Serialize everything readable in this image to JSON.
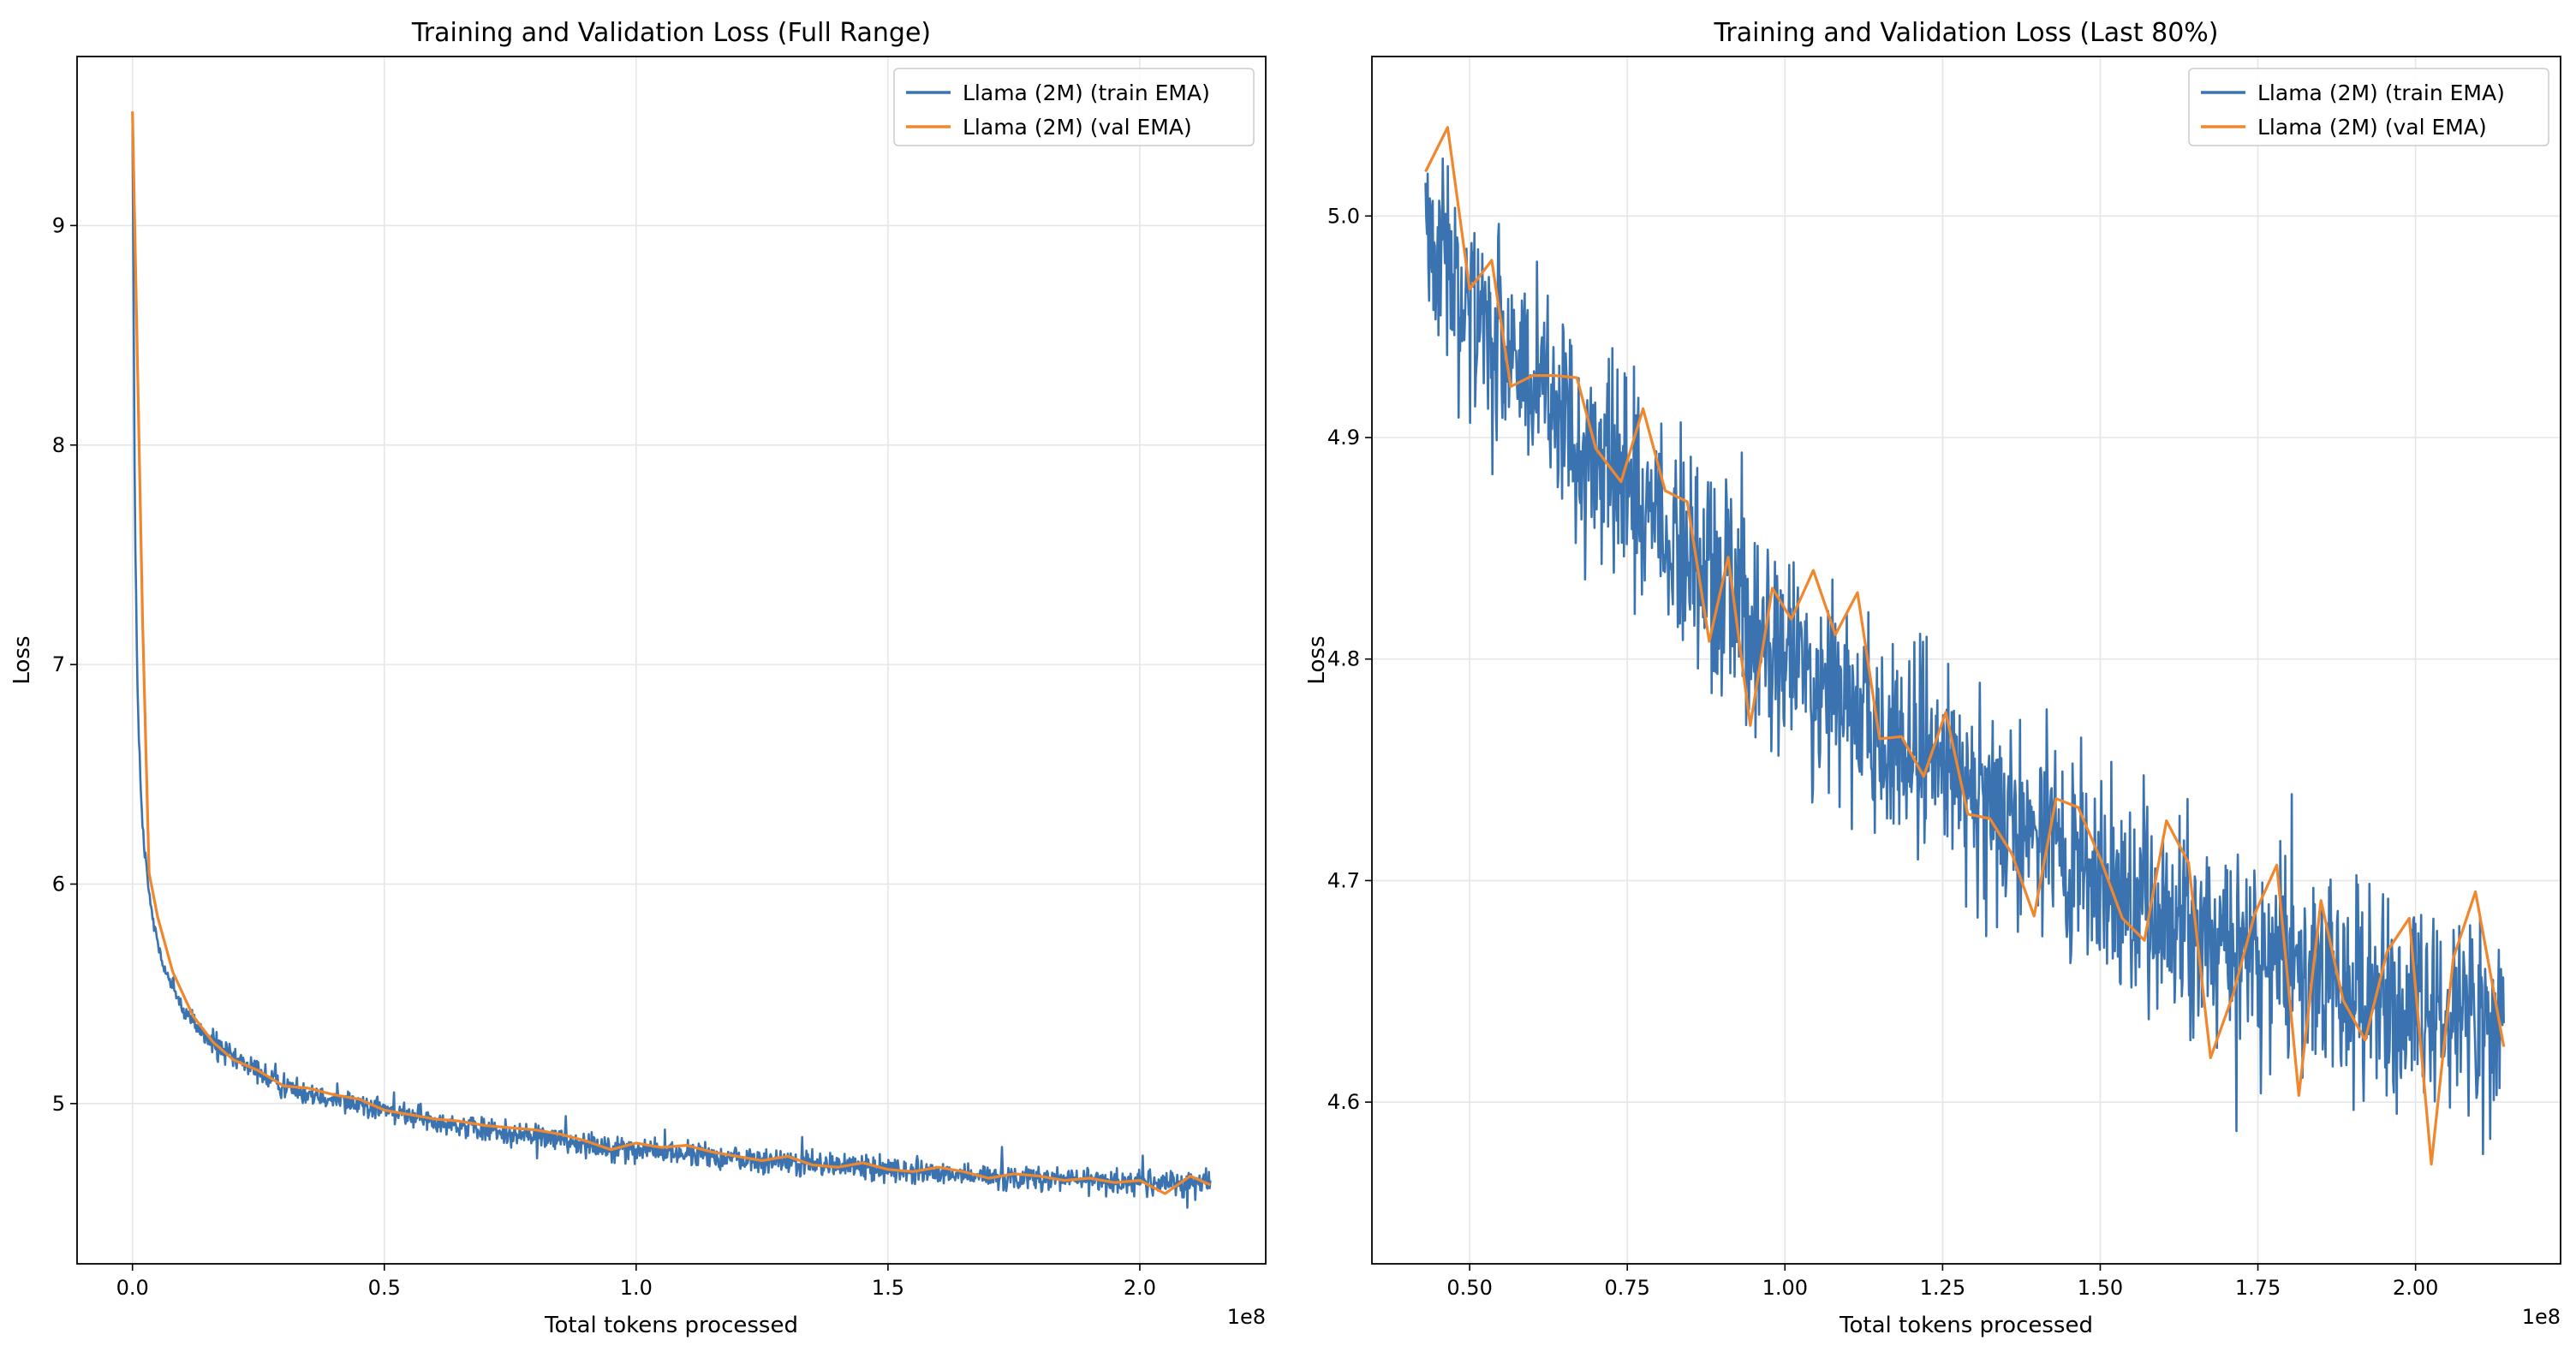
{
  "chart_data": [
    {
      "type": "line",
      "title": "Training and Validation Loss (Full Range)",
      "xlabel": "Total tokens processed",
      "ylabel": "Loss",
      "x_offset_label": "1e8",
      "xlim": [
        -0.11,
        2.25
      ],
      "ylim": [
        4.27,
        9.77
      ],
      "xticks": [
        0.0,
        0.5,
        1.0,
        1.5,
        2.0
      ],
      "xtick_labels": [
        "0.0",
        "0.5",
        "1.0",
        "1.5",
        "2.0"
      ],
      "yticks": [
        5,
        6,
        7,
        8,
        9
      ],
      "ytick_labels": [
        "5",
        "6",
        "7",
        "8",
        "9"
      ],
      "grid": true,
      "legend_position": "upper-right",
      "series": [
        {
          "name": "Llama (2M) (train EMA)",
          "color": "#3a73b0",
          "x": [
            0.0,
            0.005,
            0.01,
            0.015,
            0.02,
            0.03,
            0.04,
            0.05,
            0.07,
            0.1,
            0.15,
            0.2,
            0.3,
            0.4,
            0.5,
            0.6,
            0.7,
            0.8,
            0.9,
            1.0,
            1.1,
            1.2,
            1.3,
            1.4,
            1.5,
            1.6,
            1.7,
            1.8,
            1.9,
            2.0,
            2.1,
            2.14
          ],
          "y": [
            9.5,
            7.6,
            6.9,
            6.5,
            6.25,
            6.0,
            5.85,
            5.73,
            5.58,
            5.43,
            5.3,
            5.2,
            5.08,
            5.03,
            4.97,
            4.92,
            4.88,
            4.85,
            4.82,
            4.79,
            4.77,
            4.75,
            4.73,
            4.72,
            4.7,
            4.68,
            4.67,
            4.66,
            4.65,
            4.64,
            4.64,
            4.64
          ],
          "noise": 0.045
        },
        {
          "name": "Llama (2M) (val EMA)",
          "color": "#f0872d",
          "x": [
            0.0,
            0.02,
            0.033,
            0.05,
            0.08,
            0.12,
            0.16,
            0.2,
            0.25,
            0.3,
            0.35,
            0.4,
            0.45,
            0.5,
            0.55,
            0.6,
            0.65,
            0.7,
            0.75,
            0.8,
            0.85,
            0.9,
            0.95,
            1.0,
            1.05,
            1.1,
            1.15,
            1.2,
            1.25,
            1.3,
            1.35,
            1.4,
            1.45,
            1.5,
            1.55,
            1.6,
            1.65,
            1.7,
            1.75,
            1.8,
            1.85,
            1.9,
            1.95,
            2.0,
            2.05,
            2.1,
            2.14
          ],
          "y": [
            9.52,
            7.2,
            6.05,
            5.85,
            5.6,
            5.4,
            5.28,
            5.2,
            5.15,
            5.08,
            5.07,
            5.04,
            5.02,
            4.97,
            4.95,
            4.93,
            4.92,
            4.9,
            4.89,
            4.88,
            4.86,
            4.83,
            4.79,
            4.82,
            4.8,
            4.81,
            4.78,
            4.76,
            4.74,
            4.76,
            4.72,
            4.71,
            4.73,
            4.7,
            4.69,
            4.71,
            4.69,
            4.66,
            4.68,
            4.67,
            4.65,
            4.66,
            4.64,
            4.65,
            4.59,
            4.67,
            4.63
          ]
        }
      ]
    },
    {
      "type": "line",
      "title": "Training and Validation Loss (Last 80%)",
      "xlabel": "Total tokens processed",
      "ylabel": "Loss",
      "x_offset_label": "1e8",
      "xlim": [
        0.345,
        2.23
      ],
      "ylim": [
        4.527,
        5.072
      ],
      "xticks": [
        0.5,
        0.75,
        1.0,
        1.25,
        1.5,
        1.75,
        2.0
      ],
      "xtick_labels": [
        "0.50",
        "0.75",
        "1.00",
        "1.25",
        "1.50",
        "1.75",
        "2.00"
      ],
      "yticks": [
        4.6,
        4.7,
        4.8,
        4.9,
        5.0
      ],
      "ytick_labels": [
        "4.6",
        "4.7",
        "4.8",
        "4.9",
        "5.0"
      ],
      "grid": true,
      "legend_position": "upper-right",
      "series": [
        {
          "name": "Llama (2M) (train EMA)",
          "color": "#3a73b0",
          "x": [
            0.43,
            0.5,
            0.6,
            0.7,
            0.8,
            0.9,
            1.0,
            1.1,
            1.2,
            1.3,
            1.4,
            1.5,
            1.6,
            1.7,
            1.8,
            1.9,
            2.0,
            2.14
          ],
          "y": [
            5.0,
            4.96,
            4.92,
            4.89,
            4.86,
            4.83,
            4.8,
            4.78,
            4.76,
            4.74,
            4.72,
            4.7,
            4.685,
            4.67,
            4.66,
            4.65,
            4.645,
            4.64
          ],
          "noise": 0.036
        },
        {
          "name": "Llama (2M) (val EMA)",
          "color": "#f0872d",
          "x": [
            0.43,
            0.465,
            0.5,
            0.535,
            0.565,
            0.6,
            0.635,
            0.67,
            0.7,
            0.74,
            0.775,
            0.81,
            0.845,
            0.88,
            0.91,
            0.945,
            0.98,
            1.01,
            1.045,
            1.08,
            1.115,
            1.15,
            1.185,
            1.22,
            1.255,
            1.29,
            1.325,
            1.36,
            1.395,
            1.43,
            1.465,
            1.5,
            1.535,
            1.57,
            1.605,
            1.64,
            1.675,
            1.71,
            1.745,
            1.78,
            1.815,
            1.85,
            1.885,
            1.92,
            1.955,
            1.99,
            2.025,
            2.06,
            2.095,
            2.14
          ],
          "y": [
            5.02,
            5.04,
            4.967,
            4.98,
            4.923,
            4.928,
            4.928,
            4.927,
            4.895,
            4.88,
            4.913,
            4.876,
            4.871,
            4.808,
            4.846,
            4.77,
            4.832,
            4.818,
            4.84,
            4.811,
            4.83,
            4.764,
            4.765,
            4.747,
            4.776,
            4.73,
            4.728,
            4.712,
            4.684,
            4.737,
            4.733,
            4.71,
            4.683,
            4.673,
            4.727,
            4.708,
            4.62,
            4.648,
            4.685,
            4.707,
            4.603,
            4.691,
            4.646,
            4.628,
            4.668,
            4.683,
            4.572,
            4.665,
            4.695,
            4.625
          ]
        }
      ]
    }
  ]
}
